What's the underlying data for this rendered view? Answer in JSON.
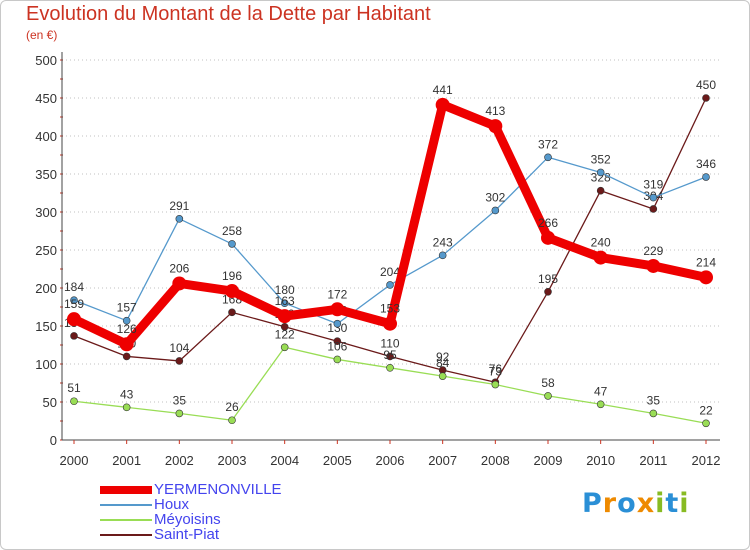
{
  "chart_data": {
    "type": "line",
    "title": "Evolution du Montant de la Dette par Habitant",
    "subtitle": "(en €)",
    "xlabel": "",
    "ylabel": "",
    "ylim": [
      0,
      500
    ],
    "yticks": [
      0,
      50,
      100,
      150,
      200,
      250,
      300,
      350,
      400,
      450,
      500
    ],
    "grid": "horizontal dotted",
    "x": [
      "2000",
      "2001",
      "2002",
      "2003",
      "2004",
      "2005",
      "2006",
      "2007",
      "2008",
      "2009",
      "2010",
      "2011",
      "2012"
    ],
    "series": [
      {
        "name": "Saint-Piat",
        "color": "#6b1a1a",
        "emphasis": false,
        "values": [
          137,
          110,
          104,
          168,
          149,
          130,
          110,
          92,
          76,
          195,
          328,
          304,
          450
        ],
        "labels": [
          "137",
          "110",
          "104",
          "168",
          "149",
          "130",
          "110",
          "92",
          "76",
          "195",
          "328",
          "304",
          "450"
        ]
      },
      {
        "name": "Méyoisins",
        "color": "#99dd55",
        "emphasis": false,
        "values": [
          51,
          43,
          35,
          26,
          122,
          106,
          95,
          84,
          73,
          58,
          47,
          35,
          22
        ],
        "labels": [
          "51",
          "43",
          "35",
          "26",
          "122",
          "106",
          "95",
          "84",
          "73",
          "58",
          "47",
          "35",
          "22"
        ]
      },
      {
        "name": "Houx",
        "color": "#5599cc",
        "emphasis": false,
        "values": [
          184,
          157,
          291,
          258,
          180,
          153,
          204,
          243,
          302,
          372,
          352,
          319,
          346
        ],
        "labels": [
          "184",
          "157",
          "291",
          "258",
          "180",
          "153",
          "204",
          "243",
          "302",
          "372",
          "352",
          "319",
          "346"
        ]
      },
      {
        "name": "YERMENONVILLE",
        "color": "#ee0000",
        "emphasis": true,
        "values": [
          159,
          126,
          206,
          196,
          163,
          172,
          153,
          441,
          413,
          266,
          240,
          229,
          214
        ],
        "labels": [
          "159",
          "126",
          "206",
          "196",
          "163",
          "172",
          "153",
          "441",
          "413",
          "266",
          "240",
          "229",
          "214"
        ]
      }
    ],
    "legend": {
      "position": "bottom-left",
      "entries": [
        {
          "name": "YERMENONVILLE",
          "color": "#ee0000"
        },
        {
          "name": "Houx",
          "color": "#5599cc"
        },
        {
          "name": "Méyoisins",
          "color": "#99dd55"
        },
        {
          "name": "Saint-Piat",
          "color": "#6b1a1a"
        }
      ]
    }
  },
  "logo": {
    "letters": [
      {
        "ch": "P",
        "color": "#2a8fd6"
      },
      {
        "ch": "r",
        "color": "#ee8a00"
      },
      {
        "ch": "o",
        "color": "#2a8fd6"
      },
      {
        "ch": "x",
        "color": "#ee8a00"
      },
      {
        "ch": "i",
        "color": "#88bb22"
      },
      {
        "ch": "t",
        "color": "#2a8fd6"
      },
      {
        "ch": "i",
        "color": "#88bb22"
      }
    ]
  }
}
